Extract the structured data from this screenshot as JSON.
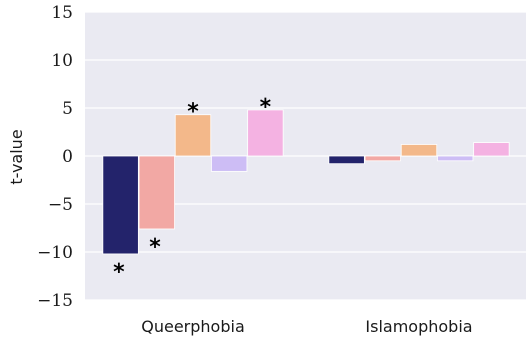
{
  "chart_data": {
    "type": "bar",
    "ylabel": "t-value",
    "ylim": [
      -15,
      15
    ],
    "yticks": [
      15,
      10,
      5,
      0,
      -5,
      -10,
      -15
    ],
    "ytick_labels": [
      "15",
      "10",
      "5",
      "0",
      "−5",
      "−10",
      "−15"
    ],
    "grid": true,
    "categories": [
      "Queerphobia",
      "Islamophobia"
    ],
    "series": [
      {
        "color": "#23236b",
        "values": [
          -10.2,
          -0.8
        ],
        "significant": [
          true,
          false
        ]
      },
      {
        "color": "#f2a8a4",
        "values": [
          -7.6,
          -0.5
        ],
        "significant": [
          true,
          false
        ]
      },
      {
        "color": "#f3b88a",
        "values": [
          4.3,
          1.2
        ],
        "significant": [
          true,
          false
        ]
      },
      {
        "color": "#cdbdf5",
        "values": [
          -1.6,
          -0.5
        ],
        "significant": [
          false,
          false
        ]
      },
      {
        "color": "#f4b2e2",
        "values": [
          4.8,
          1.4
        ],
        "significant": [
          true,
          false
        ]
      }
    ],
    "significance_marker": "*",
    "plot_background": "#eaeaf2",
    "grid_color": "#ffffff"
  }
}
